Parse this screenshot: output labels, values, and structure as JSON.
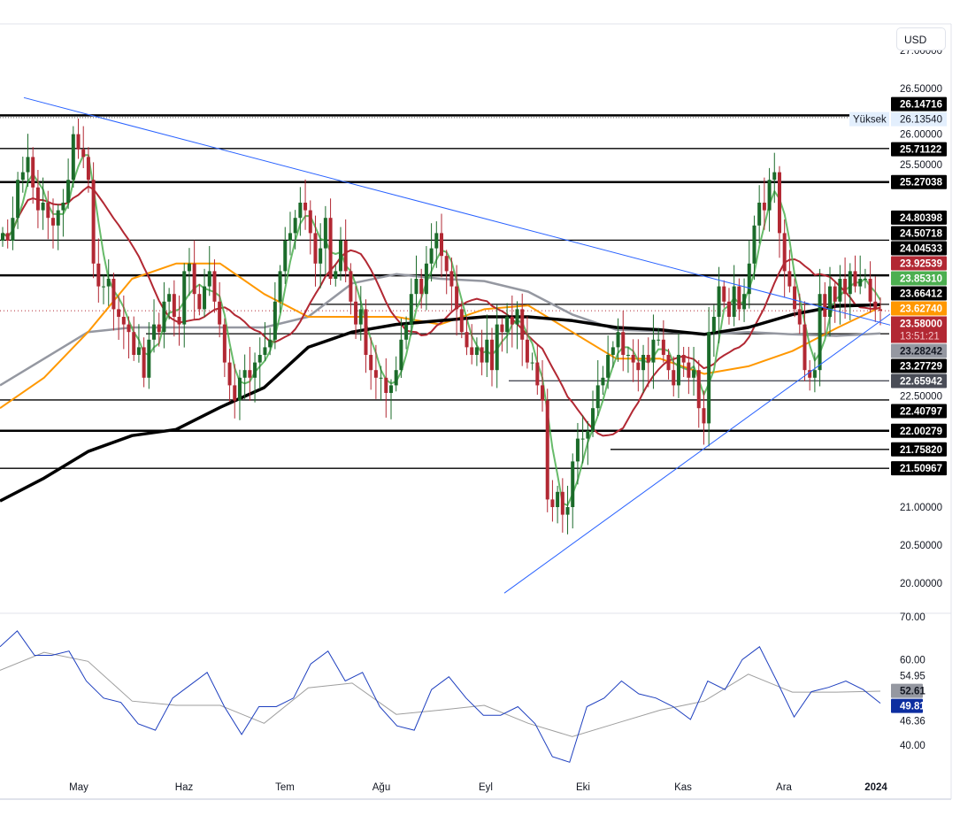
{
  "currency_button": "USD",
  "chart_data": [
    {
      "type": "candlestick",
      "pane": "price",
      "x_ticks": [
        "May",
        "Haz",
        "Tem",
        "Ağu",
        "Eyl",
        "Eki",
        "Kas",
        "Ara",
        "2024"
      ],
      "y_ticks": [
        "27.00000",
        "26.50000",
        "26.00000",
        "25.50000",
        "22.50000",
        "21.00000",
        "20.50000",
        "20.00000"
      ],
      "y_tick_values": [
        27.0,
        26.5,
        26.0,
        25.5,
        22.5,
        21.0,
        20.5,
        20.0
      ],
      "ylim": [
        19.6,
        27.2
      ],
      "closes": [
        24.6,
        24.5,
        24.8,
        25.3,
        25.4,
        25.6,
        25.2,
        24.9,
        25.0,
        24.8,
        24.7,
        24.9,
        25.0,
        25.3,
        25.9,
        25.7,
        25.6,
        25.3,
        24.2,
        23.9,
        23.9,
        24.0,
        23.6,
        23.5,
        23.4,
        23.3,
        23.0,
        23.1,
        22.7,
        23.2,
        23.4,
        23.3,
        23.7,
        23.8,
        23.5,
        23.4,
        24.1,
        24.2,
        23.8,
        23.6,
        23.9,
        24.1,
        23.7,
        23.4,
        22.9,
        22.6,
        22.4,
        22.7,
        22.8,
        22.7,
        22.9,
        23.0,
        23.1,
        23.2,
        23.7,
        24.1,
        24.5,
        24.6,
        24.8,
        25.0,
        24.9,
        24.6,
        24.2,
        24.4,
        24.8,
        24.0,
        24.1,
        24.5,
        24.1,
        23.7,
        23.4,
        23.6,
        23.0,
        22.8,
        22.7,
        22.7,
        22.5,
        22.6,
        22.8,
        23.2,
        23.4,
        23.8,
        24.0,
        23.8,
        24.2,
        24.4,
        24.6,
        24.3,
        24.1,
        23.9,
        23.6,
        23.3,
        23.1,
        23.0,
        23.1,
        22.9,
        23.2,
        22.8,
        23.4,
        23.3,
        23.5,
        23.4,
        23.6,
        23.2,
        22.9,
        22.9,
        22.6,
        22.4,
        21.1,
        21.0,
        21.2,
        20.9,
        21.0,
        21.6,
        21.9,
        21.9,
        22.0,
        22.3,
        22.6,
        22.7,
        23.0,
        23.1,
        23.3,
        23.0,
        23.0,
        22.9,
        22.8,
        23.0,
        22.9,
        23.2,
        23.2,
        23.0,
        22.8,
        22.6,
        23.0,
        22.9,
        22.7,
        22.8,
        22.3,
        22.1,
        23.3,
        23.5,
        23.9,
        23.7,
        23.5,
        23.9,
        23.6,
        23.8,
        24.2,
        24.7,
        25.0,
        24.9,
        25.3,
        25.4,
        24.6,
        24.1,
        23.9,
        23.6,
        23.4,
        22.8,
        22.7,
        22.8,
        23.8,
        23.5,
        23.9,
        23.7,
        24.0,
        23.8,
        24.1,
        23.9,
        24.0,
        24.0,
        23.7,
        23.6,
        23.58
      ],
      "moving_averages": [
        {
          "color": "#4caf50",
          "period": 4
        },
        {
          "color": "#b22833",
          "period": 16
        },
        {
          "color": "#ff9800",
          "values": [
            22.3,
            22.7,
            23.3,
            24.0,
            24.2,
            24.2,
            23.8,
            23.5,
            23.5,
            23.5,
            23.4,
            23.6,
            23.65,
            23.3,
            22.95,
            22.95,
            22.75,
            22.85,
            23.05,
            23.35,
            23.6274
          ]
        },
        {
          "color": "#9598a1",
          "values": [
            22.6,
            22.95,
            23.3,
            23.36,
            23.36,
            23.36,
            23.36,
            23.5,
            23.94,
            24.06,
            24.0,
            23.97,
            23.83,
            23.53,
            23.33,
            23.31,
            23.27,
            23.3,
            23.27,
            23.25,
            23.28242
          ]
        },
        {
          "color": "#000000",
          "values": [
            21.08,
            21.38,
            21.73,
            21.94,
            22.02,
            22.31,
            22.57,
            23.1,
            23.3,
            23.4,
            23.45,
            23.5,
            23.5,
            23.45,
            23.36,
            23.33,
            23.27,
            23.36,
            23.53,
            23.64,
            23.66
          ]
        }
      ],
      "trendlines": [
        {
          "color": "#2962ff",
          "from_price": 26.38,
          "to_price": 23.38
        },
        {
          "color": "#2962ff",
          "from_price": 19.87,
          "to_price": 23.57
        }
      ],
      "horizontal_levels": [
        {
          "price": 26.14716,
          "label": "26.14716",
          "bold": true,
          "dotted": true
        },
        {
          "price": 25.71122,
          "label": "25.71122",
          "bold": false
        },
        {
          "price": 25.27038,
          "label": "25.27038",
          "bold": true
        },
        {
          "price": 24.80398,
          "label": "24.80398",
          "hidden_line": true
        },
        {
          "price": 24.50718,
          "label": "24.50718",
          "bold": false
        },
        {
          "price": 24.04533,
          "label": "24.04533",
          "bold": true
        },
        {
          "price": 23.66412,
          "label": "23.66412",
          "bold": false,
          "start": "partial"
        },
        {
          "price": 23.27729,
          "label": "23.27729",
          "bold": false,
          "start": "partial"
        },
        {
          "price": 22.65942,
          "label": "22.65942",
          "bold": false,
          "start": "partial",
          "color": "#4a4d57"
        },
        {
          "price": 22.40797,
          "label": "22.40797",
          "bold": false
        },
        {
          "price": 22.00279,
          "label": "22.00279",
          "bold": true
        },
        {
          "price": 21.7582,
          "label": "21.75820",
          "bold": false,
          "start": "partial"
        },
        {
          "price": 21.50967,
          "label": "21.50967",
          "bold": false
        }
      ],
      "high_marker": {
        "label": "Yüksek",
        "price": 26.1354,
        "value": "26.13540"
      },
      "value_labels": [
        {
          "price": 23.92539,
          "value": "23.92539",
          "color": "#b22833"
        },
        {
          "price": 23.8531,
          "value": "23.85310",
          "color": "#4caf50"
        },
        {
          "price": 23.6274,
          "value": "23.62740",
          "color": "#ff9800"
        },
        {
          "price": 23.28242,
          "value": "23.28242",
          "color": "#9598a1"
        }
      ],
      "last_price": {
        "price": 23.58,
        "value": "23.58000",
        "countdown": "13:51:21",
        "color": "#b22833"
      }
    },
    {
      "type": "line",
      "pane": "rsi",
      "ylim": [
        34,
        71
      ],
      "y_ticks": [
        "70.00",
        "60.00",
        "54.95",
        "46.36",
        "40.00"
      ],
      "y_tick_values": [
        70,
        60,
        54.95,
        46.36,
        40
      ],
      "rsi": [
        63,
        66.7,
        61,
        61,
        62,
        55,
        51,
        50,
        45,
        43.5,
        51,
        54,
        57,
        49,
        42.5,
        49,
        49,
        51,
        59,
        62,
        55,
        57,
        49,
        44.5,
        43.5,
        53,
        56,
        51,
        47,
        47,
        49,
        45,
        37.3,
        36,
        49,
        51,
        55,
        52,
        51,
        49,
        46,
        55,
        53,
        60,
        63,
        55,
        46.6,
        52.5,
        53.5,
        55,
        53,
        49.81
      ],
      "rsi_ma": [
        57.5,
        61.7,
        59.6,
        50.3,
        49.3,
        49.3,
        45.1,
        53.4,
        54.5,
        47.2,
        48.2,
        49.3,
        45.1,
        42,
        45.1,
        48.2,
        50.3,
        56.6,
        52.4,
        52.4,
        52.61
      ],
      "rsi_color": "#1e3fbf",
      "ma_color": "#9e9e9e",
      "rsi_label": {
        "value": "49.81",
        "color": "#0d2ea0"
      },
      "ma_label": {
        "value": "52.61",
        "color": "#9598a1"
      }
    }
  ]
}
